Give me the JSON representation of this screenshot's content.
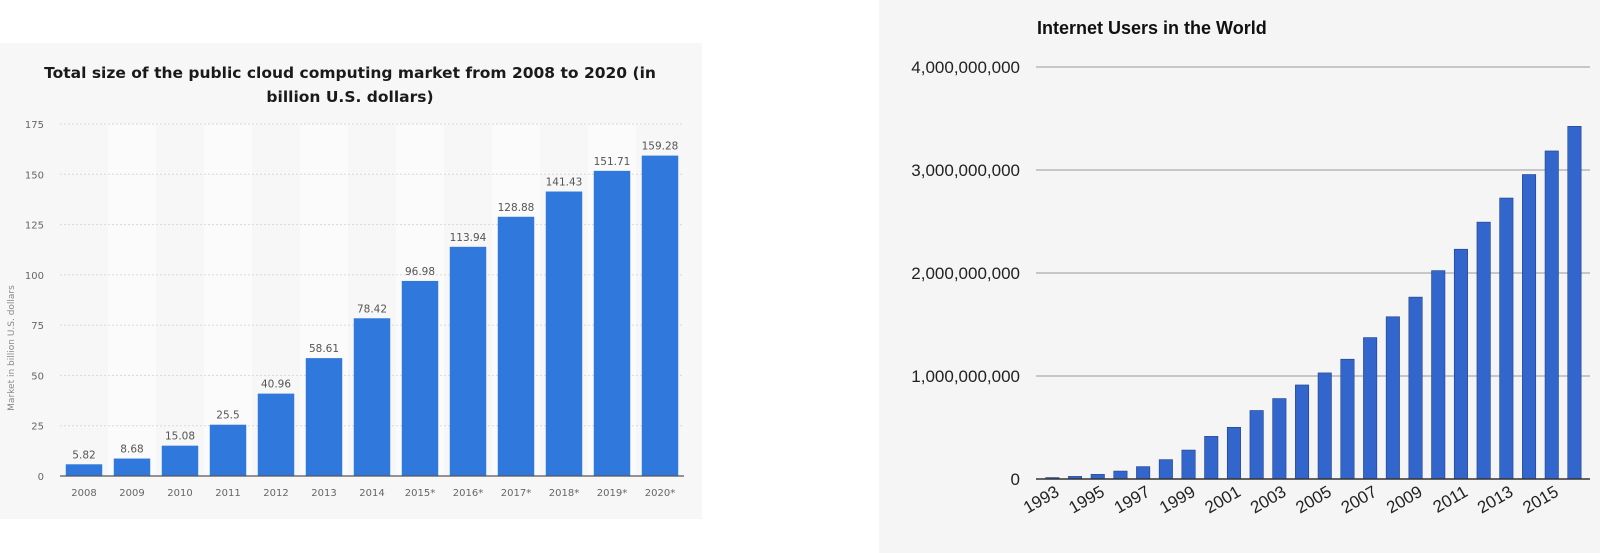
{
  "chart_data": [
    {
      "type": "bar",
      "title": "Total size of the public cloud computing market from 2008 to 2020 (in billion U.S. dollars)",
      "xlabel": "",
      "ylabel": "Market in billion U.S. dollars",
      "ylim": [
        0,
        175
      ],
      "yticks": [
        0,
        25,
        50,
        75,
        100,
        125,
        150,
        175
      ],
      "categories": [
        "2008",
        "2009",
        "2010",
        "2011",
        "2012",
        "2013",
        "2014",
        "2015*",
        "2016*",
        "2017*",
        "2018*",
        "2019*",
        "2020*"
      ],
      "values": [
        5.82,
        8.68,
        15.08,
        25.5,
        40.96,
        58.61,
        78.42,
        96.98,
        113.94,
        128.88,
        141.43,
        151.71,
        159.28
      ],
      "value_labels": [
        "5.82",
        "8.68",
        "15.08",
        "25.5",
        "40.96",
        "58.61",
        "78.42",
        "96.98",
        "113.94",
        "128.88",
        "141.43",
        "151.71",
        "159.28"
      ],
      "grid": true,
      "bar_color": "#3178dd"
    },
    {
      "type": "bar",
      "title": "Internet Users in the World",
      "xlabel": "",
      "ylabel": "",
      "ylim": [
        0,
        4000000000
      ],
      "yticks": [
        0,
        1000000000,
        2000000000,
        3000000000,
        4000000000
      ],
      "ytick_labels": [
        "0",
        "1,000,000,000",
        "2,000,000,000",
        "3,000,000,000",
        "4,000,000,000"
      ],
      "x": [
        1993,
        1994,
        1995,
        1996,
        1997,
        1998,
        1999,
        2000,
        2001,
        2002,
        2003,
        2004,
        2005,
        2006,
        2007,
        2008,
        2009,
        2010,
        2011,
        2012,
        2013,
        2014,
        2015,
        2016
      ],
      "xtick_labels": [
        "1993",
        "1995",
        "1997",
        "1999",
        "2001",
        "2003",
        "2005",
        "2007",
        "2009",
        "2011",
        "2013",
        "2015"
      ],
      "values": [
        14000000,
        25000000,
        45000000,
        77000000,
        120000000,
        188000000,
        281000000,
        414000000,
        502000000,
        665000000,
        781000000,
        913000000,
        1030000000,
        1163000000,
        1373000000,
        1575000000,
        1766000000,
        2023000000,
        2231000000,
        2494000000,
        2728000000,
        2956000000,
        3185000000,
        3424000000
      ],
      "grid": true,
      "bar_color": "#3366cc"
    }
  ]
}
